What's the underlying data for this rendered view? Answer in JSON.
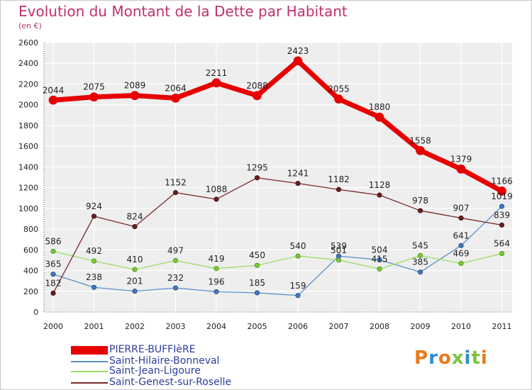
{
  "chart_data": {
    "type": "line",
    "title": "Evolution du Montant de la Dette par Habitant",
    "subtitle": "(en €)",
    "xlabel": "",
    "ylabel": "",
    "ylim": [
      0,
      2600
    ],
    "yticks": [
      0,
      200,
      400,
      600,
      800,
      1000,
      1200,
      1400,
      1600,
      1800,
      2000,
      2200,
      2400,
      2600
    ],
    "x": [
      "2000",
      "2001",
      "2002",
      "2003",
      "2004",
      "2005",
      "2006",
      "2007",
      "2008",
      "2009",
      "2010",
      "2011"
    ],
    "grid": true,
    "legend_position": "bottom-left",
    "series": [
      {
        "name": "PIERRE-BUFFIèRE",
        "color": "#e60000",
        "values": [
          2044,
          2075,
          2089,
          2064,
          2211,
          2088,
          2423,
          2055,
          1880,
          1558,
          1379,
          1166
        ]
      },
      {
        "name": "Saint-Hilaire-Bonneval",
        "color": "#5b8fc7",
        "values": [
          365,
          238,
          201,
          232,
          196,
          185,
          159,
          539,
          504,
          385,
          641,
          1019
        ]
      },
      {
        "name": "Saint-Jean-Ligoure",
        "color": "#99dd66",
        "values": [
          586,
          492,
          410,
          497,
          419,
          450,
          540,
          501,
          415,
          545,
          469,
          564
        ]
      },
      {
        "name": "Saint-Genest-sur-Roselle",
        "color": "#7a2a2a",
        "values": [
          182,
          924,
          824,
          1152,
          1088,
          1295,
          1241,
          1182,
          1128,
          978,
          907,
          839
        ]
      }
    ]
  },
  "legend": [
    {
      "label": "PIERRE-BUFFIèRE",
      "color": "#e60000"
    },
    {
      "label": "Saint-Hilaire-Bonneval",
      "color": "#5b8fc7"
    },
    {
      "label": "Saint-Jean-Ligoure",
      "color": "#99dd66"
    },
    {
      "label": "Saint-Genest-sur-Roselle",
      "color": "#7a2a2a"
    }
  ],
  "logo": {
    "text": "Proxiti"
  }
}
